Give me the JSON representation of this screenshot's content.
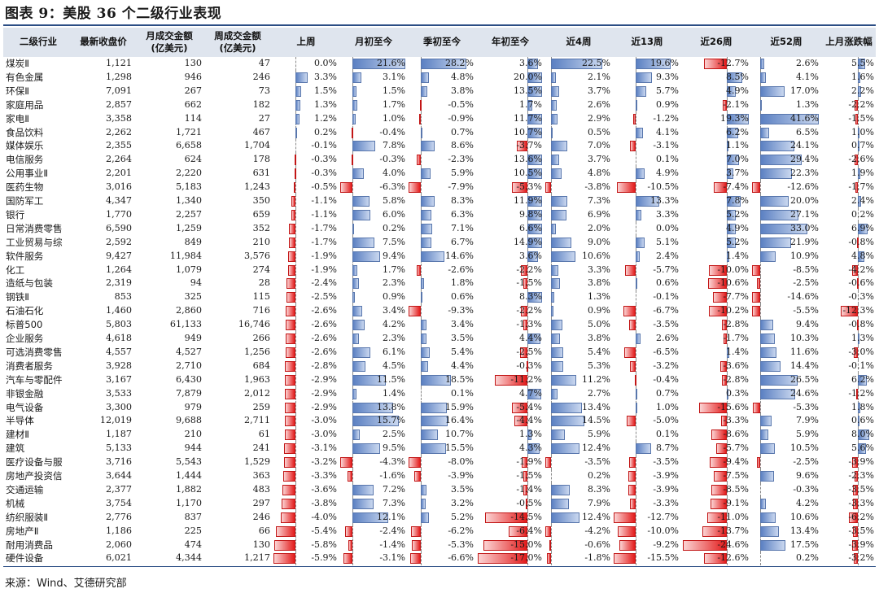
{
  "title": "图表 9：美股 36 个二级行业表现",
  "source": "来源：Wind、艾德研究部",
  "colors": {
    "positive_bar": "#5b80c2",
    "negative_bar": "#e31b1b",
    "header_band": "#dfe5ee",
    "rule": "#2b4d84"
  },
  "headers": [
    "二级行业",
    "最新收盘价",
    "月成交金额\n(亿美元)",
    "周成交金额\n(亿美元)",
    "上周",
    "月初至今",
    "季初至今",
    "年初至今",
    "近4周",
    "近13周",
    "近26周",
    "近52周",
    "上月涨跌幅"
  ],
  "chart_data": {
    "type": "table",
    "columns": [
      "二级行业",
      "最新收盘价",
      "月成交金额(亿美元)",
      "周成交金额(亿美元)",
      "上周",
      "月初至今",
      "季初至今",
      "年初至今",
      "近4周",
      "近13周",
      "近26周",
      "近52周",
      "上月涨跌幅"
    ],
    "rows": [
      [
        "煤炭Ⅱ",
        "1,121",
        "130",
        "47",
        "0.0%",
        "21.6%",
        "28.2%",
        "3.6%",
        "22.5%",
        "19.6%",
        "-12.7%",
        "2.6%",
        "5.5%"
      ],
      [
        "有色金属",
        "1,298",
        "946",
        "246",
        "3.3%",
        "3.1%",
        "4.8%",
        "20.0%",
        "2.1%",
        "9.3%",
        "8.5%",
        "4.1%",
        "1.6%"
      ],
      [
        "环保Ⅱ",
        "7,091",
        "267",
        "73",
        "1.5%",
        "1.5%",
        "3.8%",
        "13.5%",
        "3.7%",
        "5.7%",
        "4.9%",
        "17.0%",
        "2.2%"
      ],
      [
        "家庭用品",
        "2,857",
        "662",
        "182",
        "1.3%",
        "1.7%",
        "-0.5%",
        "1.7%",
        "2.6%",
        "0.9%",
        "-2.1%",
        "1.3%",
        "-2.2%"
      ],
      [
        "家电Ⅱ",
        "3,358",
        "114",
        "27",
        "1.2%",
        "1.0%",
        "-0.9%",
        "11.7%",
        "2.9%",
        "-1.2%",
        "19.3%",
        "41.6%",
        "-1.5%"
      ],
      [
        "食品饮料",
        "2,262",
        "1,721",
        "467",
        "0.2%",
        "-0.4%",
        "0.7%",
        "10.7%",
        "0.5%",
        "4.1%",
        "6.2%",
        "6.5%",
        "1.0%"
      ],
      [
        "媒体娱乐",
        "2,355",
        "6,658",
        "1,704",
        "-0.1%",
        "7.8%",
        "8.6%",
        "-3.7%",
        "7.0%",
        "-3.1%",
        "1.1%",
        "24.1%",
        "0.7%"
      ],
      [
        "电信服务",
        "2,264",
        "624",
        "178",
        "-0.3%",
        "-0.3%",
        "-2.3%",
        "13.6%",
        "3.7%",
        "0.1%",
        "7.0%",
        "29.4%",
        "-2.6%"
      ],
      [
        "公用事业Ⅱ",
        "2,201",
        "2,220",
        "631",
        "-0.3%",
        "4.0%",
        "5.9%",
        "10.5%",
        "4.8%",
        "4.9%",
        "3.7%",
        "22.3%",
        "1.9%"
      ],
      [
        "医药生物",
        "3,016",
        "5,183",
        "1,243",
        "-0.5%",
        "-6.3%",
        "-7.9%",
        "-5.3%",
        "-3.8%",
        "-10.5%",
        "-7.4%",
        "-12.6%",
        "-1.7%"
      ],
      [
        "国防军工",
        "4,347",
        "1,340",
        "350",
        "-1.1%",
        "5.8%",
        "8.3%",
        "11.9%",
        "7.3%",
        "13.3%",
        "7.8%",
        "20.0%",
        "2.4%"
      ],
      [
        "银行",
        "1,770",
        "2,257",
        "659",
        "-1.1%",
        "6.0%",
        "6.3%",
        "9.8%",
        "6.9%",
        "3.3%",
        "5.2%",
        "27.1%",
        "0.2%"
      ],
      [
        "日常消费零售",
        "6,590",
        "1,259",
        "352",
        "-1.7%",
        "0.2%",
        "7.1%",
        "6.6%",
        "2.0%",
        "0.0%",
        "4.9%",
        "33.0%",
        "6.9%"
      ],
      [
        "工业贸易与综",
        "2,592",
        "849",
        "210",
        "-1.7%",
        "7.5%",
        "6.7%",
        "14.9%",
        "9.0%",
        "5.1%",
        "5.2%",
        "21.9%",
        "-0.8%"
      ],
      [
        "软件服务",
        "9,427",
        "11,984",
        "3,576",
        "-1.9%",
        "9.4%",
        "14.6%",
        "3.6%",
        "10.6%",
        "2.4%",
        "1.4%",
        "10.9%",
        "4.8%"
      ],
      [
        "化工",
        "1,264",
        "1,079",
        "274",
        "-1.9%",
        "1.7%",
        "-2.6%",
        "-2.2%",
        "3.3%",
        "-5.7%",
        "-10.0%",
        "-8.5%",
        "-4.2%"
      ],
      [
        "造纸与包装",
        "2,319",
        "94",
        "28",
        "-2.4%",
        "2.3%",
        "1.8%",
        "-1.5%",
        "3.8%",
        "0.6%",
        "-10.6%",
        "-2.5%",
        "-0.6%"
      ],
      [
        "钢铁Ⅱ",
        "853",
        "325",
        "115",
        "-2.5%",
        "0.9%",
        "0.6%",
        "8.3%",
        "1.3%",
        "-0.1%",
        "-7.7%",
        "-14.6%",
        "-0.3%"
      ],
      [
        "石油石化",
        "1,460",
        "2,860",
        "716",
        "-2.6%",
        "3.4%",
        "-9.3%",
        "-2.2%",
        "0.9%",
        "-6.7%",
        "-10.2%",
        "-5.5%",
        "-12.3%"
      ],
      [
        "标普500",
        "5,803",
        "61,133",
        "16,746",
        "-2.6%",
        "4.2%",
        "3.4%",
        "-1.3%",
        "5.0%",
        "-3.5%",
        "-2.8%",
        "9.4%",
        "-0.8%"
      ],
      [
        "企业服务",
        "4,618",
        "949",
        "266",
        "-2.6%",
        "2.3%",
        "3.5%",
        "4.4%",
        "3.8%",
        "2.6%",
        "-1.7%",
        "10.3%",
        "1.3%"
      ],
      [
        "可选消费零售",
        "4,557",
        "4,527",
        "1,256",
        "-2.6%",
        "6.1%",
        "5.4%",
        "-2.5%",
        "5.4%",
        "-6.5%",
        "1.4%",
        "11.6%",
        "-3.0%"
      ],
      [
        "消费者服务",
        "3,928",
        "2,710",
        "684",
        "-2.8%",
        "4.5%",
        "4.4%",
        "-0.3%",
        "5.3%",
        "-3.2%",
        "-3.6%",
        "14.4%",
        "-0.1%"
      ],
      [
        "汽车与零配件",
        "3,167",
        "6,430",
        "1,963",
        "-2.9%",
        "11.5%",
        "18.5%",
        "-11.2%",
        "11.2%",
        "-0.4%",
        "-2.8%",
        "26.5%",
        "6.2%"
      ],
      [
        "非银金融",
        "3,533",
        "7,879",
        "2,012",
        "-2.9%",
        "1.4%",
        "0.1%",
        "4.7%",
        "2.7%",
        "0.7%",
        "0.3%",
        "24.6%",
        "-1.2%"
      ],
      [
        "电气设备",
        "3,300",
        "979",
        "259",
        "-2.9%",
        "13.8%",
        "15.9%",
        "-5.4%",
        "13.4%",
        "1.0%",
        "-15.6%",
        "-5.3%",
        "1.8%"
      ],
      [
        "半导体",
        "12,019",
        "9,688",
        "2,711",
        "-3.0%",
        "15.7%",
        "16.4%",
        "-4.4%",
        "14.5%",
        "-5.0%",
        "-3.3%",
        "7.9%",
        "0.6%"
      ],
      [
        "建材Ⅱ",
        "1,187",
        "210",
        "61",
        "-3.0%",
        "2.5%",
        "10.7%",
        "1.3%",
        "5.9%",
        "0.1%",
        "-8.6%",
        "5.9%",
        "8.0%"
      ],
      [
        "建筑",
        "5,133",
        "944",
        "241",
        "-3.1%",
        "9.5%",
        "15.5%",
        "4.3%",
        "12.4%",
        "8.7%",
        "-5.7%",
        "10.5%",
        "5.6%"
      ],
      [
        "医疗设备与服",
        "3,716",
        "5,543",
        "1,529",
        "-3.2%",
        "-4.3%",
        "-8.0%",
        "-1.9%",
        "-3.5%",
        "-3.5%",
        "-9.4%",
        "-2.5%",
        "-3.9%"
      ],
      [
        "房地产投资信",
        "3,644",
        "1,444",
        "363",
        "-3.3%",
        "-1.6%",
        "-3.9%",
        "-1.5%",
        "0.2%",
        "-3.9%",
        "-7.5%",
        "9.6%",
        "-2.3%"
      ],
      [
        "交通运输",
        "2,377",
        "1,882",
        "483",
        "-3.6%",
        "7.2%",
        "3.5%",
        "-1.4%",
        "8.3%",
        "-3.9%",
        "-8.5%",
        "-0.3%",
        "-3.5%"
      ],
      [
        "机械",
        "3,754",
        "1,170",
        "297",
        "-3.8%",
        "7.3%",
        "3.2%",
        "-0.5%",
        "7.9%",
        "-3.3%",
        "-9.1%",
        "4.2%",
        "-3.3%"
      ],
      [
        "纺织服装Ⅱ",
        "2,776",
        "837",
        "246",
        "-4.0%",
        "12.1%",
        "5.2%",
        "-14.5%",
        "12.4%",
        "-12.7%",
        "-11.0%",
        "10.6%",
        "-6.2%"
      ],
      [
        "房地产Ⅱ",
        "1,186",
        "225",
        "66",
        "-5.4%",
        "-2.4%",
        "-6.2%",
        "-6.4%",
        "-4.2%",
        "-10.0%",
        "-13.7%",
        "13.4%",
        "-3.5%"
      ],
      [
        "耐用消费品",
        "2,060",
        "474",
        "130",
        "-5.8%",
        "-1.4%",
        "-5.3%",
        "-15.0%",
        "-0.6%",
        "-9.2%",
        "-24.6%",
        "17.5%",
        "-3.9%"
      ],
      [
        "硬件设备",
        "6,021",
        "4,344",
        "1,217",
        "-5.9%",
        "-3.1%",
        "-6.6%",
        "-17.0%",
        "-1.8%",
        "-15.5%",
        "-12.6%",
        "0.2%",
        "-3.2%"
      ]
    ]
  }
}
